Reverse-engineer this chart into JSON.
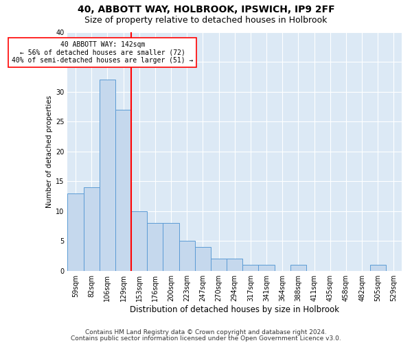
{
  "title1": "40, ABBOTT WAY, HOLBROOK, IPSWICH, IP9 2FF",
  "title2": "Size of property relative to detached houses in Holbrook",
  "xlabel": "Distribution of detached houses by size in Holbrook",
  "ylabel": "Number of detached properties",
  "footer1": "Contains HM Land Registry data © Crown copyright and database right 2024.",
  "footer2": "Contains public sector information licensed under the Open Government Licence v3.0.",
  "categories": [
    "59sqm",
    "82sqm",
    "106sqm",
    "129sqm",
    "153sqm",
    "176sqm",
    "200sqm",
    "223sqm",
    "247sqm",
    "270sqm",
    "294sqm",
    "317sqm",
    "341sqm",
    "364sqm",
    "388sqm",
    "411sqm",
    "435sqm",
    "458sqm",
    "482sqm",
    "505sqm",
    "529sqm"
  ],
  "values": [
    13,
    14,
    32,
    27,
    10,
    8,
    8,
    5,
    4,
    2,
    2,
    1,
    1,
    0,
    1,
    0,
    0,
    0,
    0,
    1,
    0
  ],
  "bar_color": "#c5d8ed",
  "bar_edge_color": "#5b9bd5",
  "bar_width": 1.0,
  "vline_x": 3.5,
  "vline_color": "red",
  "annotation_text": "40 ABBOTT WAY: 142sqm\n← 56% of detached houses are smaller (72)\n40% of semi-detached houses are larger (51) →",
  "annotation_box_color": "white",
  "annotation_box_edge": "red",
  "ylim": [
    0,
    40
  ],
  "yticks": [
    0,
    5,
    10,
    15,
    20,
    25,
    30,
    35,
    40
  ],
  "bg_color": "#dce9f5",
  "grid_color": "white",
  "title1_fontsize": 10,
  "title2_fontsize": 9,
  "xlabel_fontsize": 8.5,
  "ylabel_fontsize": 7.5,
  "tick_fontsize": 7,
  "annot_fontsize": 7,
  "footer_fontsize": 6.5
}
